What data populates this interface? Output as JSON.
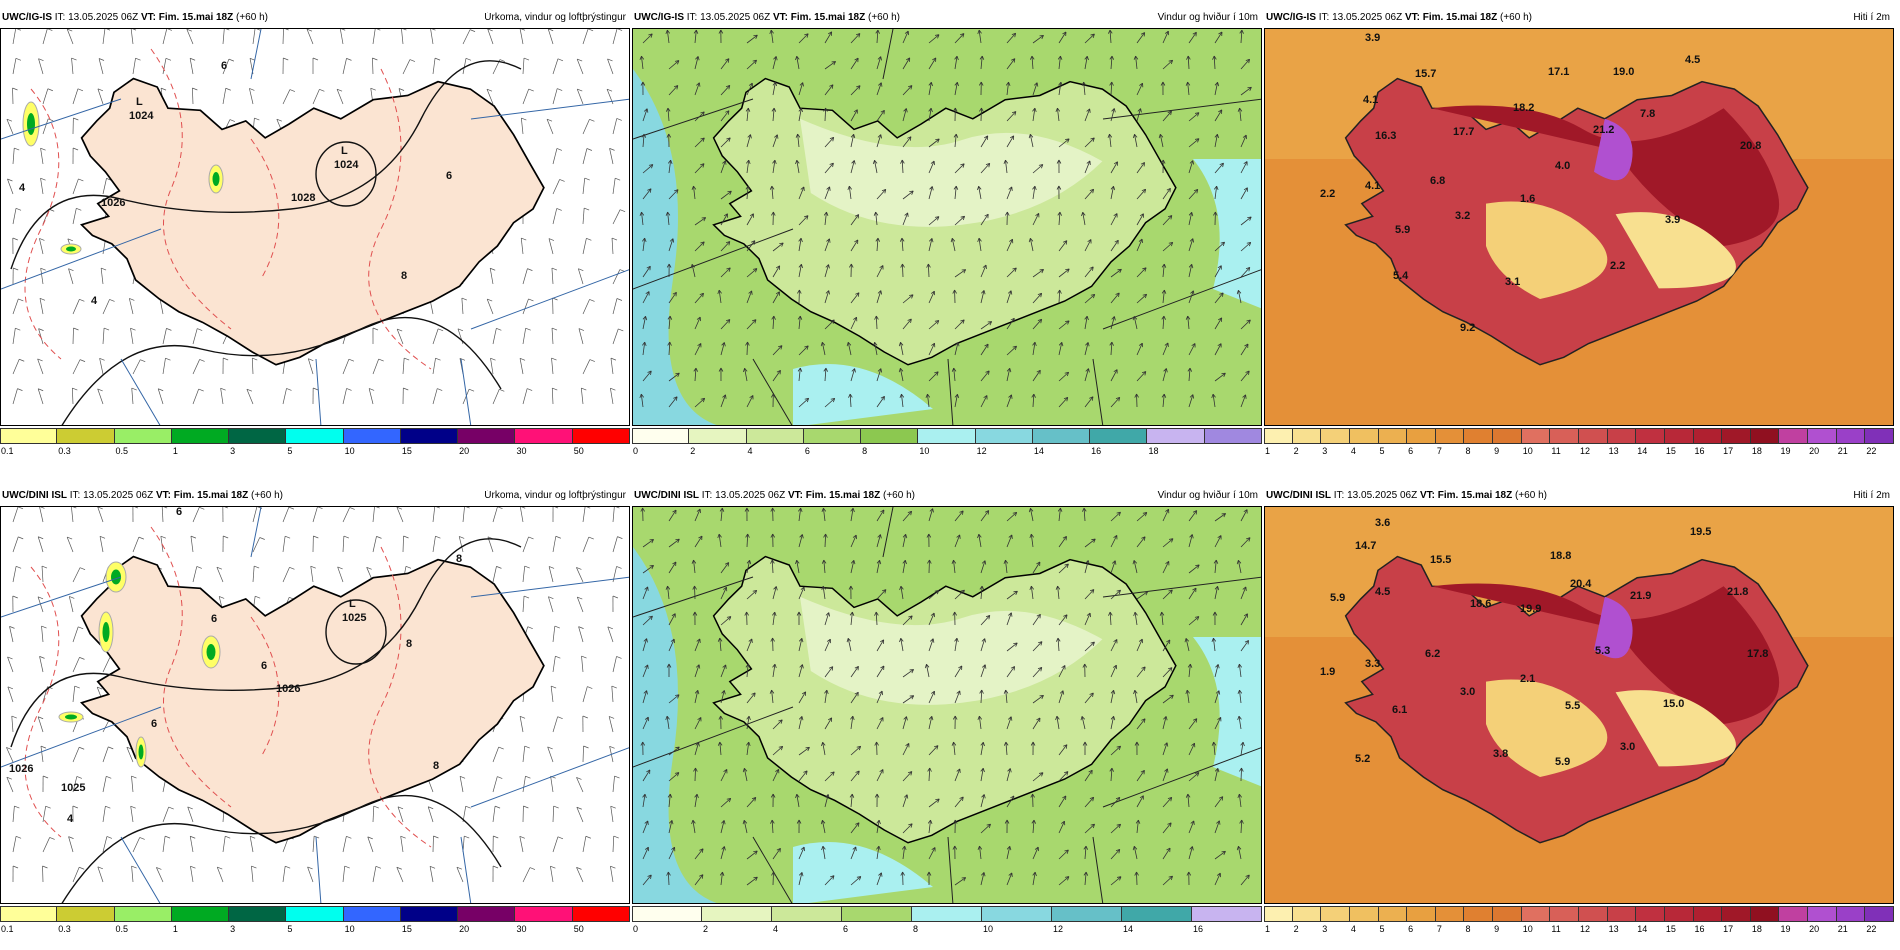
{
  "panels": [
    {
      "model": "UWC/IG-IS",
      "it_label": "IT:",
      "it": "13.05.2025 06Z",
      "vt_label": "VT:",
      "vt": "Fim. 15.mai 18Z",
      "lead": "(+60 h)",
      "title": "Úrkoma, vindur og loftþrýstingur"
    },
    {
      "model": "UWC/IG-IS",
      "it_label": "IT:",
      "it": "13.05.2025 06Z",
      "vt_label": "VT:",
      "vt": "Fim. 15.mai 18Z",
      "lead": "(+60 h)",
      "title": "Vindur og hviður í 10m"
    },
    {
      "model": "UWC/IG-IS",
      "it_label": "IT:",
      "it": "13.05.2025 06Z",
      "vt_label": "VT:",
      "vt": "Fim. 15.mai 18Z",
      "lead": "(+60 h)",
      "title": "Hiti í 2m"
    },
    {
      "model": "UWC/DINI ISL",
      "it_label": "IT:",
      "it": "13.05.2025 06Z",
      "vt_label": "VT:",
      "vt": "Fim. 15.mai 18Z",
      "lead": "(+60 h)",
      "title": "Úrkoma, vindur og loftþrýstingur"
    },
    {
      "model": "UWC/DINI ISL",
      "it_label": "IT:",
      "it": "13.05.2025 06Z",
      "vt_label": "VT:",
      "vt": "Fim. 15.mai 18Z",
      "lead": "(+60 h)",
      "title": "Vindur og hviður í 10m"
    },
    {
      "model": "UWC/DINI ISL",
      "it_label": "IT:",
      "it": "13.05.2025 06Z",
      "vt_label": "VT:",
      "vt": "Fim. 15.mai 18Z",
      "lead": "(+60 h)",
      "title": "Hiti í 2m"
    }
  ],
  "colorbars": {
    "precip": {
      "ticks": [
        "0.1",
        "0.3",
        "0.5",
        "1",
        "3",
        "5",
        "10",
        "15",
        "20",
        "30",
        "50"
      ],
      "colors": [
        "#ffff99",
        "#cccc33",
        "#99ee66",
        "#00aa22",
        "#006644",
        "#00ffee",
        "#3366ff",
        "#000088",
        "#770066",
        "#ff1177",
        "#ff0000"
      ]
    },
    "wind_top": {
      "ticks": [
        "0",
        "2",
        "4",
        "6",
        "8",
        "10",
        "12",
        "14",
        "16",
        "18"
      ],
      "colors": [
        "#ffffee",
        "#e6f5c0",
        "#cce89a",
        "#a8d86e",
        "#8cc850",
        "#aaf0f0",
        "#88d8e0",
        "#66c0c8",
        "#40a8a8",
        "#c8b4f0",
        "#a088e0"
      ]
    },
    "wind_bottom": {
      "ticks": [
        "0",
        "2",
        "4",
        "6",
        "8",
        "10",
        "12",
        "14",
        "16"
      ],
      "colors": [
        "#ffffee",
        "#e6f5c0",
        "#cce89a",
        "#a8d86e",
        "#aaf0f0",
        "#88d8e0",
        "#66c0c8",
        "#40a8a8",
        "#c8b4f0"
      ]
    },
    "temp": {
      "ticks": [
        "1",
        "2",
        "3",
        "4",
        "5",
        "6",
        "7",
        "8",
        "9",
        "10",
        "11",
        "12",
        "13",
        "14",
        "15",
        "16",
        "17",
        "18",
        "19",
        "20",
        "21",
        "22"
      ],
      "colors": [
        "#fdf0b0",
        "#f8e090",
        "#f4d078",
        "#f0c060",
        "#ecb050",
        "#e8a040",
        "#e49038",
        "#e08030",
        "#dc7830",
        "#e07060",
        "#d86058",
        "#d05050",
        "#c84048",
        "#c03040",
        "#b82838",
        "#b02030",
        "#a01828",
        "#901020",
        "#c040a0",
        "#b050d0",
        "#9a40c8",
        "#8030b8"
      ]
    }
  },
  "labels": {
    "p0": [
      {
        "t": "L",
        "x": 135,
        "y": 76
      },
      {
        "t": "1024",
        "x": 128,
        "y": 90
      },
      {
        "t": "L",
        "x": 340,
        "y": 125
      },
      {
        "t": "1024",
        "x": 333,
        "y": 139
      },
      {
        "t": "1026",
        "x": 100,
        "y": 177
      },
      {
        "t": "1028",
        "x": 290,
        "y": 172
      },
      {
        "t": "6",
        "x": 220,
        "y": 40
      },
      {
        "t": "4",
        "x": 18,
        "y": 162
      },
      {
        "t": "8",
        "x": 400,
        "y": 250
      },
      {
        "t": "4",
        "x": 90,
        "y": 275
      },
      {
        "t": "6",
        "x": 445,
        "y": 150
      }
    ],
    "p3": [
      {
        "t": "L",
        "x": 348,
        "y": 100
      },
      {
        "t": "1025",
        "x": 341,
        "y": 114
      },
      {
        "t": "1026",
        "x": 275,
        "y": 185
      },
      {
        "t": "1025",
        "x": 60,
        "y": 284
      },
      {
        "t": "6",
        "x": 175,
        "y": 8
      },
      {
        "t": "6",
        "x": 210,
        "y": 115
      },
      {
        "t": "6",
        "x": 260,
        "y": 162
      },
      {
        "t": "6",
        "x": 150,
        "y": 220
      },
      {
        "t": "8",
        "x": 432,
        "y": 262
      },
      {
        "t": "8",
        "x": 455,
        "y": 55
      },
      {
        "t": "8",
        "x": 405,
        "y": 140
      },
      {
        "t": "4",
        "x": 66,
        "y": 315
      },
      {
        "t": "1026",
        "x": 8,
        "y": 265
      }
    ],
    "p2": [
      {
        "t": "3.9",
        "x": 100,
        "y": 12
      },
      {
        "t": "15.7",
        "x": 150,
        "y": 48
      },
      {
        "t": "17.1",
        "x": 283,
        "y": 46
      },
      {
        "t": "19.0",
        "x": 348,
        "y": 46
      },
      {
        "t": "4.5",
        "x": 420,
        "y": 34
      },
      {
        "t": "4.1",
        "x": 98,
        "y": 74
      },
      {
        "t": "18.2",
        "x": 248,
        "y": 82
      },
      {
        "t": "7.8",
        "x": 375,
        "y": 88
      },
      {
        "t": "16.3",
        "x": 110,
        "y": 110
      },
      {
        "t": "17.7",
        "x": 188,
        "y": 106
      },
      {
        "t": "21.2",
        "x": 328,
        "y": 104
      },
      {
        "t": "20.8",
        "x": 475,
        "y": 120
      },
      {
        "t": "4.0",
        "x": 290,
        "y": 140
      },
      {
        "t": "6.8",
        "x": 165,
        "y": 155
      },
      {
        "t": "4.1",
        "x": 100,
        "y": 160
      },
      {
        "t": "2.2",
        "x": 55,
        "y": 168
      },
      {
        "t": "1.6",
        "x": 255,
        "y": 173
      },
      {
        "t": "3.2",
        "x": 190,
        "y": 190
      },
      {
        "t": "3.9",
        "x": 400,
        "y": 194
      },
      {
        "t": "5.9",
        "x": 130,
        "y": 204
      },
      {
        "t": "2.2",
        "x": 345,
        "y": 240
      },
      {
        "t": "5.4",
        "x": 128,
        "y": 250
      },
      {
        "t": "3.1",
        "x": 240,
        "y": 256
      },
      {
        "t": "9.2",
        "x": 195,
        "y": 302
      }
    ],
    "p5": [
      {
        "t": "3.6",
        "x": 110,
        "y": 19
      },
      {
        "t": "19.5",
        "x": 425,
        "y": 28
      },
      {
        "t": "14.7",
        "x": 90,
        "y": 42
      },
      {
        "t": "15.5",
        "x": 165,
        "y": 56
      },
      {
        "t": "18.8",
        "x": 285,
        "y": 52
      },
      {
        "t": "4.5",
        "x": 110,
        "y": 88
      },
      {
        "t": "5.9",
        "x": 65,
        "y": 94
      },
      {
        "t": "18.6",
        "x": 205,
        "y": 100
      },
      {
        "t": "20.4",
        "x": 305,
        "y": 80
      },
      {
        "t": "21.9",
        "x": 365,
        "y": 92
      },
      {
        "t": "21.8",
        "x": 462,
        "y": 88
      },
      {
        "t": "19.9",
        "x": 255,
        "y": 105
      },
      {
        "t": "6.2",
        "x": 160,
        "y": 150
      },
      {
        "t": "3.3",
        "x": 100,
        "y": 160
      },
      {
        "t": "5.3",
        "x": 330,
        "y": 147
      },
      {
        "t": "17.8",
        "x": 482,
        "y": 150
      },
      {
        "t": "1.9",
        "x": 55,
        "y": 168
      },
      {
        "t": "2.1",
        "x": 255,
        "y": 175
      },
      {
        "t": "3.0",
        "x": 195,
        "y": 188
      },
      {
        "t": "15.0",
        "x": 398,
        "y": 200
      },
      {
        "t": "6.1",
        "x": 127,
        "y": 206
      },
      {
        "t": "5.5",
        "x": 300,
        "y": 202
      },
      {
        "t": "3.8",
        "x": 228,
        "y": 250
      },
      {
        "t": "3.0",
        "x": 355,
        "y": 243
      },
      {
        "t": "5.2",
        "x": 90,
        "y": 255
      },
      {
        "t": "5.9",
        "x": 290,
        "y": 258
      }
    ]
  }
}
